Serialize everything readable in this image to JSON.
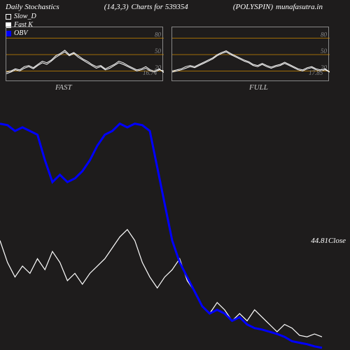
{
  "header": {
    "title": "Daily Stochastics",
    "params": "(14,3,3)",
    "charts_for": "Charts for 539354",
    "symbol": "(POLYSPIN)",
    "source": "munafasutra.in"
  },
  "legend": {
    "slow_d": "Slow_D",
    "fast_k": "Fast K",
    "obv": "OBV"
  },
  "colors": {
    "background": "#1e1c1c",
    "line_white": "#ffffff",
    "line_blue": "#0000ff",
    "gridline": "#cc8800",
    "axis_text": "#888888",
    "border": "#888888"
  },
  "sub_charts": {
    "left": {
      "label": "FAST",
      "value_label": "16.74",
      "y_ticks": [
        20,
        50,
        80
      ],
      "ylim": [
        0,
        100
      ],
      "series_a": [
        15,
        18,
        22,
        20,
        25,
        28,
        24,
        30,
        35,
        32,
        38,
        45,
        50,
        55,
        48,
        52,
        45,
        40,
        35,
        30,
        25,
        28,
        22,
        25,
        30,
        35,
        32,
        28,
        24,
        20,
        22,
        25,
        20,
        18,
        22,
        20
      ],
      "series_b": [
        18,
        20,
        24,
        22,
        28,
        30,
        26,
        32,
        38,
        35,
        40,
        48,
        52,
        58,
        50,
        54,
        48,
        42,
        38,
        32,
        28,
        30,
        24,
        28,
        32,
        38,
        35,
        30,
        26,
        22,
        24,
        28,
        22,
        20,
        24,
        17
      ]
    },
    "right": {
      "label": "FULL",
      "value_label": "17.85",
      "y_ticks": [
        20,
        50,
        80
      ],
      "ylim": [
        0,
        100
      ],
      "series_a": [
        18,
        20,
        22,
        25,
        28,
        26,
        30,
        34,
        38,
        42,
        48,
        52,
        55,
        50,
        46,
        42,
        38,
        35,
        30,
        28,
        32,
        28,
        25,
        28,
        30,
        34,
        30,
        26,
        22,
        20,
        24,
        26,
        22,
        20,
        22,
        18
      ],
      "series_b": [
        20,
        22,
        24,
        28,
        30,
        28,
        32,
        36,
        40,
        44,
        50,
        54,
        57,
        52,
        48,
        44,
        40,
        37,
        32,
        30,
        34,
        30,
        27,
        30,
        32,
        36,
        32,
        28,
        24,
        22,
        26,
        28,
        24,
        22,
        24,
        18
      ]
    }
  },
  "main_chart": {
    "close_value": "44.81",
    "close_label": "Close",
    "price_series": [
      150,
      120,
      100,
      115,
      105,
      125,
      110,
      135,
      120,
      95,
      105,
      90,
      105,
      115,
      125,
      140,
      155,
      165,
      150,
      120,
      100,
      85,
      100,
      110,
      125,
      95,
      80,
      60,
      50,
      65,
      55,
      40,
      50,
      40,
      55,
      45,
      35,
      25,
      35,
      30,
      20,
      18,
      22,
      18
    ],
    "obv_series": [
      310,
      308,
      300,
      305,
      300,
      295,
      260,
      230,
      240,
      230,
      235,
      245,
      260,
      280,
      295,
      300,
      310,
      305,
      310,
      308,
      300,
      250,
      200,
      150,
      120,
      100,
      80,
      60,
      50,
      55,
      50,
      40,
      45,
      35,
      30,
      28,
      25,
      22,
      18,
      12,
      10,
      8,
      5,
      3
    ],
    "ylim": [
      0,
      350
    ],
    "x_count": 44
  },
  "typography": {
    "font_family": "Georgia, serif",
    "font_style": "italic",
    "header_fontsize": 11,
    "legend_fontsize": 10,
    "tick_fontsize": 9
  }
}
